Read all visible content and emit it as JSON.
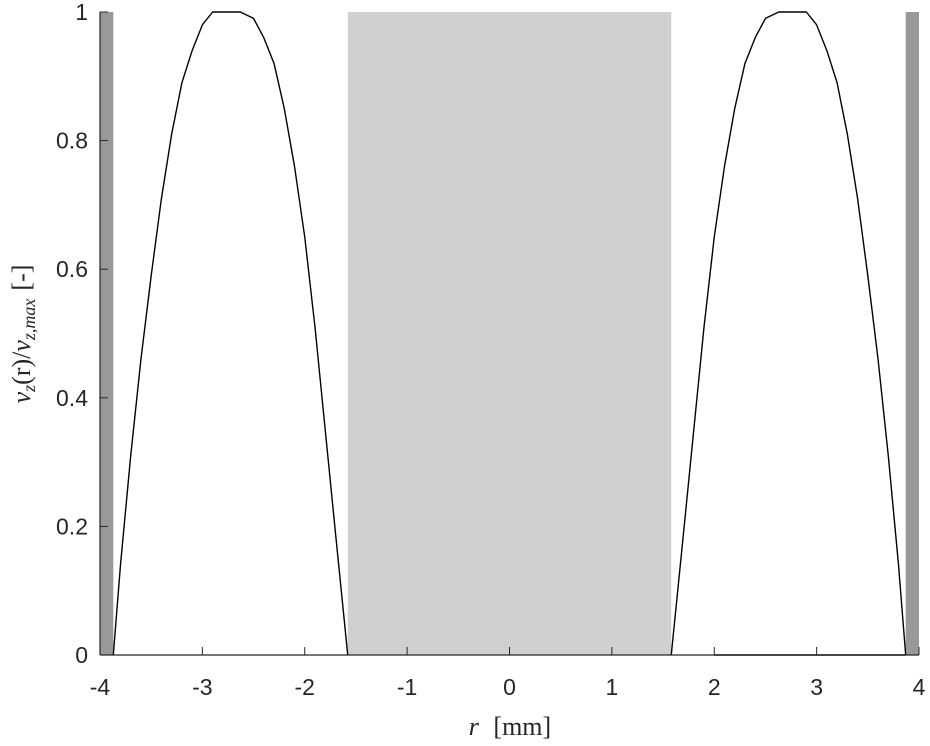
{
  "chart_data": {
    "type": "line",
    "xlim": [
      -4,
      4
    ],
    "ylim": [
      0,
      1
    ],
    "xticks": [
      -4,
      -3,
      -2,
      -1,
      0,
      1,
      2,
      3,
      4
    ],
    "yticks": [
      0,
      0.2,
      0.4,
      0.6,
      0.8,
      1
    ],
    "xtick_labels": [
      "-4",
      "-3",
      "-2",
      "-1",
      "0",
      "1",
      "2",
      "3",
      "4"
    ],
    "ytick_labels": [
      "0",
      "0.2",
      "0.4",
      "0.6",
      "0.8",
      "1"
    ],
    "xlabel": {
      "var": "r",
      "unit": "[mm]"
    },
    "ylabel": {
      "num": "v",
      "num_sub": "z",
      "arg": "(r)",
      "slash": "/",
      "den": "v",
      "den_sub": "z,max",
      "unit": "[-]"
    },
    "grid": false,
    "shaded_regions": [
      {
        "x": [
          -4,
          -3.87
        ],
        "color": "#999999"
      },
      {
        "x": [
          -1.58,
          1.58
        ],
        "color": "#d0d0d0"
      },
      {
        "x": [
          3.87,
          4
        ],
        "color": "#999999"
      }
    ],
    "series": [
      {
        "color": "#000000",
        "x": [
          -3.87,
          -3.8,
          -3.7,
          -3.6,
          -3.5,
          -3.4,
          -3.3,
          -3.2,
          -3.1,
          -3.0,
          -2.9,
          -2.8,
          -2.7,
          -2.63,
          -2.5,
          -2.4,
          -2.3,
          -2.2,
          -2.1,
          -2.0,
          -1.9,
          -1.8,
          -1.7,
          -1.58
        ],
        "y": [
          0,
          0.14,
          0.31,
          0.46,
          0.59,
          0.71,
          0.81,
          0.89,
          0.94,
          0.98,
          1.0,
          1.0,
          1.0,
          1.0,
          0.99,
          0.96,
          0.92,
          0.85,
          0.76,
          0.65,
          0.51,
          0.35,
          0.19,
          0
        ]
      },
      {
        "color": "#000000",
        "x": [
          1.58,
          1.7,
          1.8,
          1.9,
          2.0,
          2.1,
          2.2,
          2.3,
          2.4,
          2.5,
          2.63,
          2.7,
          2.8,
          2.9,
          3.0,
          3.1,
          3.2,
          3.3,
          3.4,
          3.5,
          3.6,
          3.7,
          3.8,
          3.87
        ],
        "y": [
          0,
          0.19,
          0.35,
          0.51,
          0.65,
          0.76,
          0.85,
          0.92,
          0.96,
          0.99,
          1.0,
          1.0,
          1.0,
          1.0,
          0.98,
          0.94,
          0.89,
          0.81,
          0.71,
          0.59,
          0.46,
          0.31,
          0.14,
          0
        ]
      },
      {
        "color": "#000000",
        "x": [
          2.0,
          3.87
        ],
        "y": [
          0,
          0
        ]
      }
    ]
  }
}
